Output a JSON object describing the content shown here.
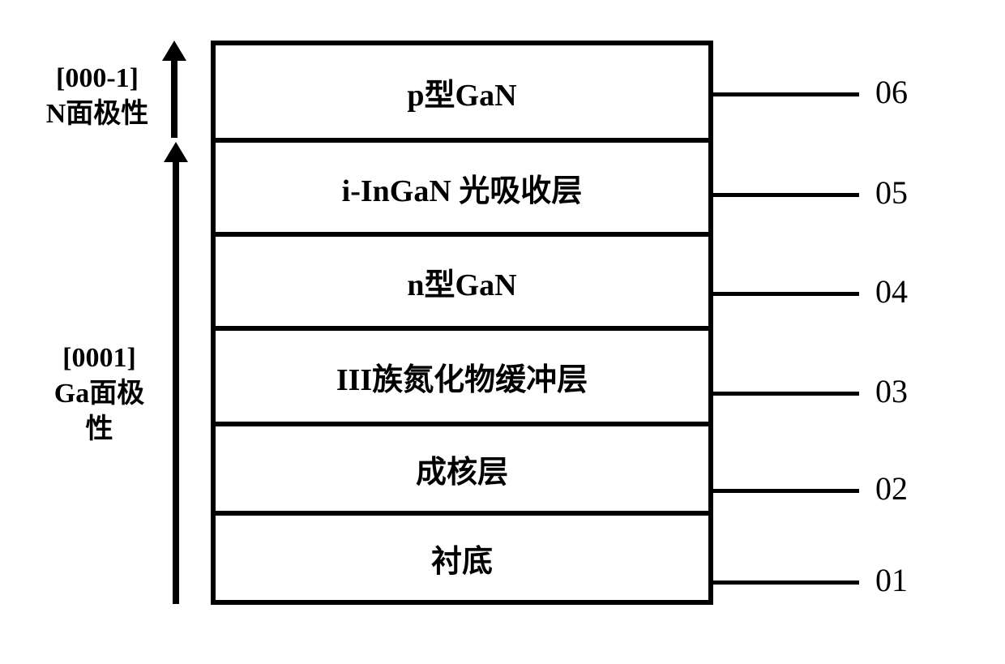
{
  "left": {
    "top_direction": "[000-1]",
    "top_polarity": "N面极性",
    "bottom_direction": "[0001]",
    "bottom_polarity": "Ga面极性"
  },
  "layers": [
    {
      "label": "p型GaN",
      "ref": "06",
      "height": 120
    },
    {
      "label": "i-InGaN 光吸收层",
      "ref": "05",
      "height": 116
    },
    {
      "label": "n型GaN",
      "ref": "04",
      "height": 116
    },
    {
      "label": "III族氮化物缓冲层",
      "ref": "03",
      "height": 118
    },
    {
      "label": "成核层",
      "ref": "02",
      "height": 110
    },
    {
      "label": "衬底",
      "ref": "01",
      "height": 104
    }
  ],
  "style": {
    "border_width": 6,
    "border_color": "#000000",
    "background_color": "#ffffff",
    "font_size_layer": 38,
    "font_size_label": 34,
    "font_size_ref": 40,
    "arrow_stroke": 8,
    "leader_length": 180,
    "stack_width": 620
  }
}
